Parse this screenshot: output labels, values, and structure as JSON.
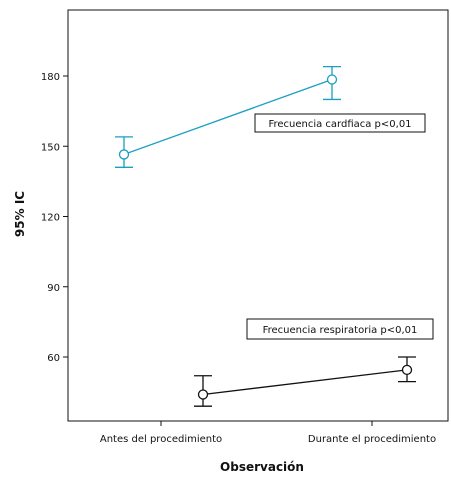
{
  "chart_data": {
    "type": "line",
    "xlabel": "Observación",
    "ylabel": "95% IC",
    "categories": [
      "Antes del procedimiento",
      "Durante el procedimiento"
    ],
    "yticks": [
      60,
      90,
      120,
      150,
      180
    ],
    "ylim": [
      30,
      210
    ],
    "grid": false,
    "series": [
      {
        "key": "fc",
        "color": "#1a9fc0",
        "means": [
          146.5,
          178.5
        ],
        "lower": [
          141,
          170
        ],
        "upper": [
          154,
          184
        ]
      },
      {
        "key": "fr",
        "color": "#111111",
        "means": [
          44,
          54.5
        ],
        "lower": [
          39,
          49.5
        ],
        "upper": [
          52,
          60
        ]
      }
    ],
    "annotations": [
      {
        "key": "fc",
        "text": "Frecuencia cardfiaca p<0,01"
      },
      {
        "key": "fr",
        "text": "Frecuencia respiratoria  p<0,01"
      }
    ]
  }
}
